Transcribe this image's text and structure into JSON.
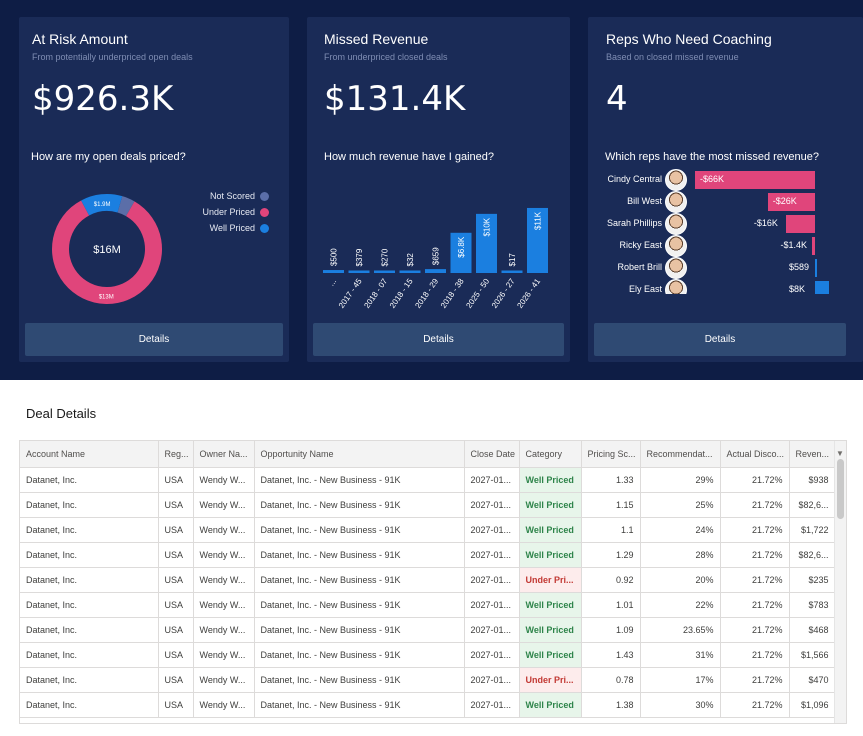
{
  "cards": [
    {
      "title": "At Risk Amount",
      "subtitle": "From potentially underpriced open deals",
      "value": "$926.3K",
      "question": "How are my open deals priced?",
      "details_label": "Details"
    },
    {
      "title": "Missed Revenue",
      "subtitle": "From underpriced closed deals",
      "value": "$131.4K",
      "question": "How much revenue have I gained?",
      "details_label": "Details"
    },
    {
      "title": "Reps Who Need Coaching",
      "subtitle": "Based on closed missed revenue",
      "value": "4",
      "question": "Which reps have the most missed revenue?",
      "details_label": "Details"
    }
  ],
  "chart_data": [
    {
      "type": "pie",
      "center_label": "$16M",
      "legend": [
        "Not Scored",
        "Under Priced",
        "Well Priced"
      ],
      "categories": [
        "Not Scored",
        "Under Priced",
        "Well Priced"
      ],
      "values": [
        0.6,
        13,
        1.9
      ],
      "data_labels": [
        "",
        "$13M",
        "$1.9M"
      ],
      "colors": [
        "#5b6ea8",
        "#e0457b",
        "#1b7fe0"
      ],
      "legend_position": "right"
    },
    {
      "type": "bar",
      "categories": [
        "...",
        "2017 - 45",
        "2018 - 07",
        "2018 - 15",
        "2018 - 29",
        "2018 - 38",
        "2025 - 50",
        "2026 - 27",
        "2026 - 41"
      ],
      "values": [
        500,
        379,
        270,
        32,
        659,
        6800,
        10000,
        17,
        11000
      ],
      "data_labels": [
        "$500",
        "$379",
        "$270",
        "$32",
        "$659",
        "$6.8K",
        "$10K",
        "$17",
        "$11K"
      ],
      "color": "#1b7fe0",
      "ylim": [
        0,
        11500
      ]
    },
    {
      "type": "bar",
      "orientation": "horizontal",
      "categories": [
        "Cindy Central",
        "Bill West",
        "Sarah Phillips",
        "Ricky East",
        "Robert Brill",
        "Ely East"
      ],
      "values": [
        -66000,
        -26000,
        -16000,
        -1400,
        589,
        8000
      ],
      "data_labels": [
        "-$66K",
        "-$26K",
        "-$16K",
        "-$1.4K",
        "$589",
        "$8K"
      ],
      "negative_color": "#e0457b",
      "positive_color": "#1b7fe0",
      "xlim": [
        -66000,
        8000
      ]
    }
  ],
  "deal_details": {
    "title": "Deal Details",
    "columns": [
      "Account Name",
      "Reg...",
      "Owner Na...",
      "Opportunity Name",
      "Close Date",
      "Category",
      "Pricing Sc...",
      "Recommendat...",
      "Actual Disco...",
      "Reven..."
    ],
    "rows": [
      [
        "Datanet, Inc.",
        "USA",
        "Wendy W...",
        "Datanet, Inc. - New Business - 91K",
        "2027-01...",
        "Well Priced",
        "1.33",
        "29%",
        "21.72%",
        "$938"
      ],
      [
        "Datanet, Inc.",
        "USA",
        "Wendy W...",
        "Datanet, Inc. - New Business - 91K",
        "2027-01...",
        "Well Priced",
        "1.15",
        "25%",
        "21.72%",
        "$82,6..."
      ],
      [
        "Datanet, Inc.",
        "USA",
        "Wendy W...",
        "Datanet, Inc. - New Business - 91K",
        "2027-01...",
        "Well Priced",
        "1.1",
        "24%",
        "21.72%",
        "$1,722"
      ],
      [
        "Datanet, Inc.",
        "USA",
        "Wendy W...",
        "Datanet, Inc. - New Business - 91K",
        "2027-01...",
        "Well Priced",
        "1.29",
        "28%",
        "21.72%",
        "$82,6..."
      ],
      [
        "Datanet, Inc.",
        "USA",
        "Wendy W...",
        "Datanet, Inc. - New Business - 91K",
        "2027-01...",
        "Under Pri...",
        "0.92",
        "20%",
        "21.72%",
        "$235"
      ],
      [
        "Datanet, Inc.",
        "USA",
        "Wendy W...",
        "Datanet, Inc. - New Business - 91K",
        "2027-01...",
        "Well Priced",
        "1.01",
        "22%",
        "21.72%",
        "$783"
      ],
      [
        "Datanet, Inc.",
        "USA",
        "Wendy W...",
        "Datanet, Inc. - New Business - 91K",
        "2027-01...",
        "Well Priced",
        "1.09",
        "23.65%",
        "21.72%",
        "$468"
      ],
      [
        "Datanet, Inc.",
        "USA",
        "Wendy W...",
        "Datanet, Inc. - New Business - 91K",
        "2027-01...",
        "Well Priced",
        "1.43",
        "31%",
        "21.72%",
        "$1,566"
      ],
      [
        "Datanet, Inc.",
        "USA",
        "Wendy W...",
        "Datanet, Inc. - New Business - 91K",
        "2027-01...",
        "Under Pri...",
        "0.78",
        "17%",
        "21.72%",
        "$470"
      ],
      [
        "Datanet, Inc.",
        "USA",
        "Wendy W...",
        "Datanet, Inc. - New Business - 91K",
        "2027-01...",
        "Well Priced",
        "1.38",
        "30%",
        "21.72%",
        "$1,096"
      ]
    ]
  }
}
